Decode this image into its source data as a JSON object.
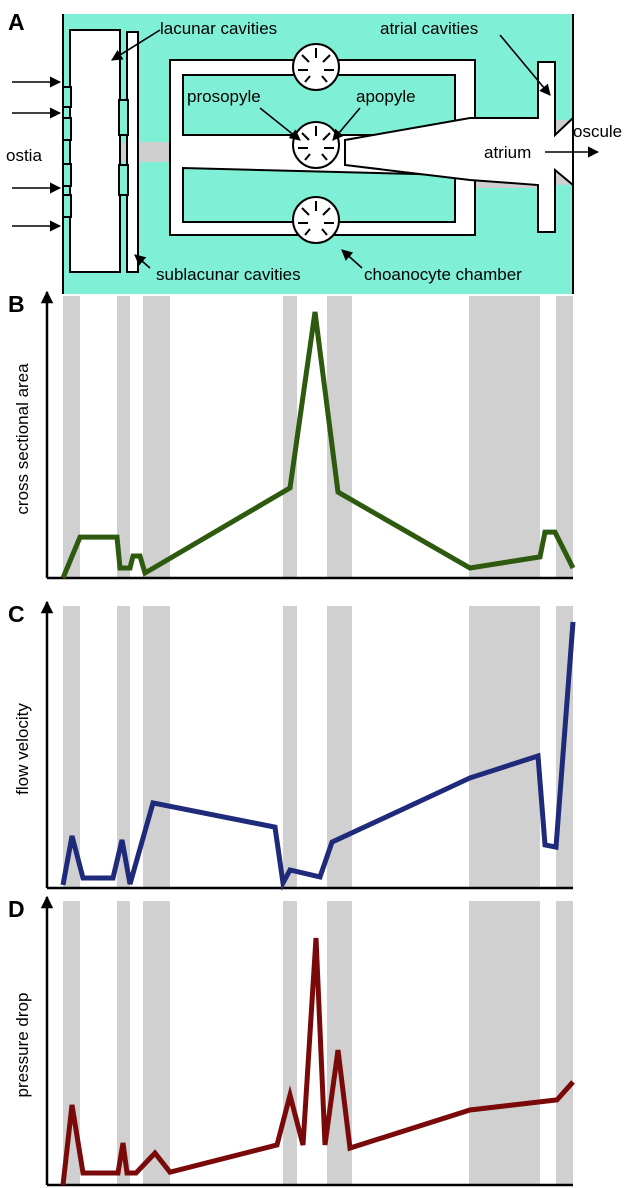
{
  "diagram": {
    "panel": "A",
    "labels": {
      "lacunar": "lacunar cavities",
      "atrial": "atrial cavities",
      "prosopyle": "prosopyle",
      "apopyle": "apopyle",
      "ostia": "ostia",
      "atrium": "atrium",
      "oscule": "oscule",
      "sublacunar": "sublacunar cavities",
      "choanocyte": "choanocyte chamber"
    }
  },
  "chart_data": [
    {
      "type": "line",
      "panel": "B",
      "y_label": "cross sectional area",
      "x": [
        0,
        17,
        54,
        57,
        67,
        70,
        77,
        82,
        227,
        252,
        275,
        407,
        477,
        482,
        492,
        510
      ],
      "series": [
        {
          "color": "#2d5a0e",
          "values": [
            0,
            14.7,
            14.7,
            3.6,
            3.6,
            7.9,
            7.9,
            1.8,
            32.4,
            95.7,
            30.9,
            3.6,
            7.6,
            16.5,
            16.5,
            3.6
          ]
        }
      ],
      "xlim": [
        0,
        510
      ],
      "ylim": [
        0,
        100
      ],
      "shaded_regions": [
        [
          0,
          17
        ],
        [
          54,
          67
        ],
        [
          80,
          107
        ],
        [
          220,
          234
        ],
        [
          264,
          289
        ],
        [
          406,
          477
        ],
        [
          493,
          510
        ]
      ]
    },
    {
      "type": "line",
      "panel": "C",
      "y_label": "flow velocity",
      "x": [
        0,
        9,
        20,
        50,
        59,
        67,
        90,
        212,
        220,
        227,
        257,
        269,
        407,
        475,
        482,
        493,
        510
      ],
      "series": [
        {
          "color": "#1f2a7a",
          "values": [
            1.1,
            18.7,
            3.6,
            3.6,
            17.3,
            1.4,
            30.6,
            21.9,
            1.8,
            6.5,
            4.0,
            16.5,
            39.6,
            47.5,
            15.5,
            14.7,
            95.7
          ]
        }
      ],
      "xlim": [
        0,
        510
      ],
      "ylim": [
        0,
        100
      ],
      "shaded_regions": [
        [
          0,
          17
        ],
        [
          54,
          67
        ],
        [
          80,
          107
        ],
        [
          220,
          234
        ],
        [
          264,
          289
        ],
        [
          406,
          477
        ],
        [
          493,
          510
        ]
      ]
    },
    {
      "type": "line",
      "panel": "D",
      "y_label": "pressure drop",
      "x": [
        0,
        9,
        20,
        55,
        60,
        64,
        73,
        92,
        107,
        214,
        227,
        240,
        253,
        262,
        275,
        287,
        407,
        494,
        510
      ],
      "series": [
        {
          "color": "#7a0a0a",
          "values": [
            0,
            28.6,
            4.3,
            4.3,
            15,
            4.3,
            4.3,
            11.4,
            4.6,
            14.3,
            32.1,
            14.3,
            88.2,
            14.3,
            48.2,
            13.2,
            26.8,
            30.4,
            36.8
          ]
        }
      ],
      "xlim": [
        0,
        510
      ],
      "ylim": [
        0,
        100
      ],
      "shaded_regions": [
        [
          0,
          17
        ],
        [
          54,
          67
        ],
        [
          80,
          107
        ],
        [
          220,
          234
        ],
        [
          264,
          289
        ],
        [
          406,
          477
        ],
        [
          493,
          510
        ]
      ]
    }
  ]
}
